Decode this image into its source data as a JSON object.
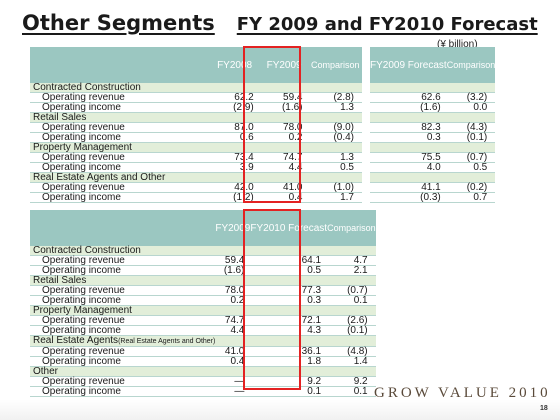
{
  "title": {
    "main": "Other Segments",
    "sub": "FY 2009 and FY2010 Forecast"
  },
  "unit": "(¥ billion)",
  "table1": {
    "headers": [
      "FY2008",
      "FY2009",
      "Comparison"
    ],
    "rows": [
      {
        "type": "section",
        "label": "Contracted Construction"
      },
      {
        "type": "item",
        "label": "Operating revenue",
        "v1": "62.2",
        "v2": "59.4",
        "v3": "(2.8)"
      },
      {
        "type": "item",
        "label": "Operating income",
        "v1": "(2.9)",
        "v2": "(1.6)",
        "v3": "1.3"
      },
      {
        "type": "section",
        "label": "Retail Sales"
      },
      {
        "type": "item",
        "label": "Operating revenue",
        "v1": "87.0",
        "v2": "78.0",
        "v3": "(9.0)"
      },
      {
        "type": "item",
        "label": "Operating income",
        "v1": "0.6",
        "v2": "0.2",
        "v3": "(0.4)"
      },
      {
        "type": "section",
        "label": "Property Management"
      },
      {
        "type": "item",
        "label": "Operating revenue",
        "v1": "73.4",
        "v2": "74.7",
        "v3": "1.3"
      },
      {
        "type": "item",
        "label": "Operating income",
        "v1": "3.9",
        "v2": "4.4",
        "v3": "0.5"
      },
      {
        "type": "section",
        "label": "Real Estate Agents and Other"
      },
      {
        "type": "item",
        "label": "Operating revenue",
        "v1": "42.0",
        "v2": "41.0",
        "v3": "(1.0)"
      },
      {
        "type": "item",
        "label": "Operating income",
        "v1": "(1.2)",
        "v2": "0.4",
        "v3": "1.7"
      }
    ]
  },
  "table_forecast2009": {
    "headers": [
      "FY2009 Forecast",
      "Comparison"
    ],
    "rows": [
      {
        "type": "section"
      },
      {
        "type": "item",
        "v1": "62.6",
        "v2": "(3.2)"
      },
      {
        "type": "item",
        "v1": "(1.6)",
        "v2": "0.0"
      },
      {
        "type": "section"
      },
      {
        "type": "item",
        "v1": "82.3",
        "v2": "(4.3)"
      },
      {
        "type": "item",
        "v1": "0.3",
        "v2": "(0.1)"
      },
      {
        "type": "section"
      },
      {
        "type": "item",
        "v1": "75.5",
        "v2": "(0.7)"
      },
      {
        "type": "item",
        "v1": "4.0",
        "v2": "0.5"
      },
      {
        "type": "section"
      },
      {
        "type": "item",
        "v1": "41.1",
        "v2": "(0.2)"
      },
      {
        "type": "item",
        "v1": "(0.3)",
        "v2": "0.7"
      }
    ]
  },
  "table2": {
    "headers": [
      "FY2009",
      "FY2010 Forecast",
      "Comparison"
    ],
    "rows": [
      {
        "type": "section",
        "label": "Contracted Construction"
      },
      {
        "type": "item",
        "label": "Operating revenue",
        "v1": "59.4",
        "v2": "64.1",
        "v3": "4.7"
      },
      {
        "type": "item",
        "label": "Operating income",
        "v1": "(1.6)",
        "v2": "0.5",
        "v3": "2.1"
      },
      {
        "type": "section",
        "label": "Retail Sales"
      },
      {
        "type": "item",
        "label": "Operating revenue",
        "v1": "78.0",
        "v2": "77.3",
        "v3": "(0.7)"
      },
      {
        "type": "item",
        "label": "Operating income",
        "v1": "0.2",
        "v2": "0.3",
        "v3": "0.1"
      },
      {
        "type": "section",
        "label": "Property Management"
      },
      {
        "type": "item",
        "label": "Operating revenue",
        "v1": "74.7",
        "v2": "72.1",
        "v3": "(2.6)"
      },
      {
        "type": "item",
        "label": "Operating income",
        "v1": "4.4",
        "v2": "4.3",
        "v3": "(0.1)"
      },
      {
        "type": "section",
        "label": "Real Estate Agents",
        "label_small": "(Real Estate Agents and Other)"
      },
      {
        "type": "item",
        "label": "Operating revenue",
        "v1": "41.0",
        "v2": "36.1",
        "v3": "(4.8)"
      },
      {
        "type": "item",
        "label": "Operating income",
        "v1": "0.4",
        "v2": "1.8",
        "v3": "1.4"
      },
      {
        "type": "section",
        "label": "Other"
      },
      {
        "type": "item",
        "label": "Operating revenue",
        "v1": "—",
        "v2": "9.2",
        "v3": "9.2"
      },
      {
        "type": "item",
        "label": "Operating income",
        "v1": "—",
        "v2": "0.1",
        "v3": "0.1"
      }
    ]
  },
  "logo": "GROW VALUE 2010",
  "page_number": "18",
  "colors": {
    "header": "#9bc7c1",
    "section": "#e2eed9",
    "highlight": "#e32222"
  }
}
